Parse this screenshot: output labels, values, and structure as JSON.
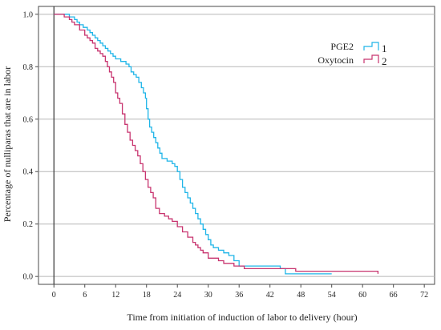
{
  "chart_data": {
    "type": "line",
    "title": "",
    "xlabel": "Time from initiation of induction of labor to delivery (hour)",
    "ylabel": "Percentage of nulliparas that are in labor",
    "xlim": [
      -3,
      74
    ],
    "ylim": [
      -0.03,
      1.03
    ],
    "xticks": [
      0,
      6,
      12,
      18,
      24,
      30,
      36,
      42,
      48,
      54,
      60,
      66,
      72
    ],
    "yticks": [
      0.0,
      0.2,
      0.4,
      0.6,
      0.8,
      1.0
    ],
    "xtick_labels": [
      "0",
      "6",
      "12",
      "18",
      "24",
      "30",
      "36",
      "42",
      "48",
      "54",
      "60",
      "66",
      "72"
    ],
    "ytick_labels": [
      "0.0",
      "0.2",
      "0.4",
      "0.6",
      "0.8",
      "1.0"
    ],
    "grid": "horizontal",
    "legend_position": "top-right",
    "vertical_reference_x": 0,
    "series": [
      {
        "name": "PGE2",
        "label": "1",
        "color": "#1fb5e8",
        "step": true,
        "x": [
          0,
          3,
          4,
          4.5,
          5,
          5.7,
          6.5,
          7,
          7.5,
          8,
          8.5,
          9,
          9.5,
          10,
          10.5,
          11,
          11.5,
          12,
          13,
          14,
          14.6,
          15,
          15.5,
          16,
          16.5,
          17,
          17.4,
          17.8,
          18,
          18.3,
          18.6,
          19,
          19.4,
          19.8,
          20.2,
          20.6,
          21,
          22,
          23,
          23.5,
          24,
          24.5,
          25,
          25.5,
          26,
          26.5,
          27,
          27.5,
          28,
          28.5,
          29,
          29.5,
          30,
          30.5,
          31,
          32,
          33,
          34,
          35,
          36,
          44,
          45,
          54
        ],
        "y": [
          1.0,
          0.99,
          0.98,
          0.97,
          0.96,
          0.95,
          0.94,
          0.93,
          0.92,
          0.91,
          0.9,
          0.89,
          0.88,
          0.87,
          0.86,
          0.85,
          0.84,
          0.83,
          0.82,
          0.81,
          0.8,
          0.78,
          0.77,
          0.76,
          0.74,
          0.72,
          0.7,
          0.68,
          0.64,
          0.6,
          0.57,
          0.55,
          0.53,
          0.51,
          0.49,
          0.47,
          0.45,
          0.44,
          0.43,
          0.42,
          0.4,
          0.37,
          0.34,
          0.32,
          0.3,
          0.28,
          0.26,
          0.24,
          0.22,
          0.2,
          0.18,
          0.16,
          0.14,
          0.12,
          0.11,
          0.1,
          0.09,
          0.08,
          0.06,
          0.04,
          0.03,
          0.01,
          0.01
        ]
      },
      {
        "name": "Oxytocin",
        "label": "2",
        "color": "#c8346f",
        "step": true,
        "x": [
          0,
          2,
          3,
          3.5,
          4,
          5,
          6,
          6.5,
          7,
          7.5,
          8,
          8.5,
          9,
          9.5,
          10,
          10.4,
          10.8,
          11.2,
          11.6,
          12,
          12.4,
          12.8,
          13.3,
          13.8,
          14.3,
          14.8,
          15.3,
          15.8,
          16.3,
          16.8,
          17.3,
          17.8,
          18.3,
          18.8,
          19.3,
          19.8,
          20.5,
          21.5,
          22.3,
          23,
          24,
          25,
          26,
          27,
          27.5,
          28,
          28.5,
          29,
          30,
          32,
          33,
          34,
          35,
          36,
          37,
          40,
          42,
          45,
          47,
          48,
          63
        ],
        "y": [
          1.0,
          0.99,
          0.98,
          0.97,
          0.96,
          0.94,
          0.92,
          0.91,
          0.9,
          0.89,
          0.87,
          0.86,
          0.85,
          0.84,
          0.82,
          0.8,
          0.78,
          0.76,
          0.74,
          0.7,
          0.68,
          0.66,
          0.62,
          0.58,
          0.55,
          0.52,
          0.5,
          0.48,
          0.46,
          0.43,
          0.4,
          0.37,
          0.34,
          0.32,
          0.3,
          0.26,
          0.24,
          0.23,
          0.22,
          0.21,
          0.19,
          0.17,
          0.15,
          0.13,
          0.12,
          0.11,
          0.1,
          0.09,
          0.07,
          0.06,
          0.05,
          0.05,
          0.04,
          0.04,
          0.03,
          0.03,
          0.03,
          0.03,
          0.02,
          0.02,
          0.01
        ]
      }
    ]
  }
}
